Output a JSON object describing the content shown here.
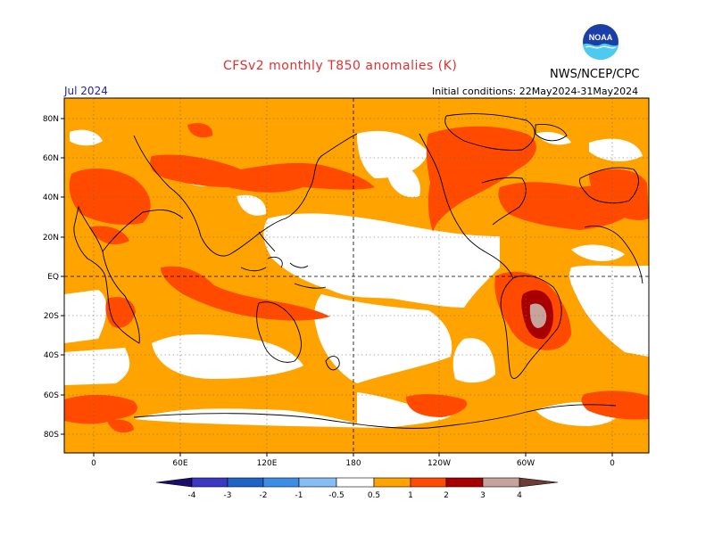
{
  "header": {
    "title": "CFSv2 monthly T850 anomalies (K)",
    "agency": "NWS/NCEP/CPC",
    "month": "Jul 2024",
    "initial_conditions": "Initial conditions: 22May2024-31May2024",
    "logo_text": "NOAA"
  },
  "axes": {
    "lat_labels": [
      "80N",
      "60N",
      "40N",
      "20N",
      "EQ",
      "20S",
      "40S",
      "60S",
      "80S"
    ],
    "lon_labels": [
      "0",
      "60E",
      "120E",
      "180",
      "120W",
      "60W",
      "0"
    ]
  },
  "colorbar": {
    "labels": [
      "-4",
      "-3",
      "-2",
      "-1",
      "-0.5",
      "0.5",
      "1",
      "2",
      "3",
      "4"
    ],
    "colors": {
      "lt_-4": "#1a0d6b",
      "-4_-3": "#3a38c4",
      "-3_-2": "#1f63c8",
      "-2_-1": "#3d8ee6",
      "-1_-0.5": "#86bdf3",
      "neutral": "#ffffff",
      "0.5_1": "#ffa300",
      "1_2": "#ff4a00",
      "2_3": "#a80000",
      "3_4": "#c8a39b",
      "gt_4": "#6e3b35"
    }
  }
}
